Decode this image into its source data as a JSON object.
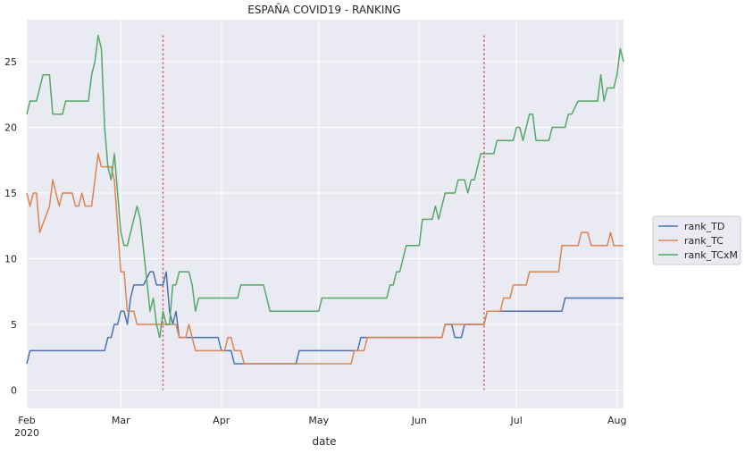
{
  "chart_data": {
    "type": "line",
    "title": "ESPAÑA COVID19 - RANKING",
    "xlabel": "date",
    "ylabel": "",
    "x_start": "2020-02-01",
    "x_end": "2020-08-03",
    "ylim": [
      -1.4,
      28.2
    ],
    "grid": true,
    "legend_position": "right",
    "x_ticks": [
      {
        "date": "2020-02-01",
        "label": "Feb",
        "sublabel": "2020"
      },
      {
        "date": "2020-03-01",
        "label": "Mar",
        "sublabel": ""
      },
      {
        "date": "2020-04-01",
        "label": "Apr",
        "sublabel": ""
      },
      {
        "date": "2020-05-01",
        "label": "May",
        "sublabel": ""
      },
      {
        "date": "2020-06-01",
        "label": "Jun",
        "sublabel": ""
      },
      {
        "date": "2020-07-01",
        "label": "Jul",
        "sublabel": ""
      },
      {
        "date": "2020-08-01",
        "label": "Aug",
        "sublabel": ""
      }
    ],
    "y_ticks": [
      0,
      5,
      10,
      15,
      20,
      25
    ],
    "vlines": [
      {
        "date": "2020-03-14",
        "color": "#c44e52"
      },
      {
        "date": "2020-06-21",
        "color": "#c44e52"
      }
    ],
    "series": [
      {
        "name": "rank_TD",
        "color": "#4c72b0",
        "points": [
          [
            "2020-02-01",
            2
          ],
          [
            "2020-02-02",
            3
          ],
          [
            "2020-02-25",
            3
          ],
          [
            "2020-02-26",
            4
          ],
          [
            "2020-02-27",
            4
          ],
          [
            "2020-02-28",
            5
          ],
          [
            "2020-02-29",
            5
          ],
          [
            "2020-03-01",
            6
          ],
          [
            "2020-03-02",
            6
          ],
          [
            "2020-03-03",
            5
          ],
          [
            "2020-03-04",
            7
          ],
          [
            "2020-03-05",
            8
          ],
          [
            "2020-03-06",
            8
          ],
          [
            "2020-03-07",
            8
          ],
          [
            "2020-03-08",
            8
          ],
          [
            "2020-03-10",
            9
          ],
          [
            "2020-03-11",
            9
          ],
          [
            "2020-03-12",
            8
          ],
          [
            "2020-03-13",
            8
          ],
          [
            "2020-03-14",
            8
          ],
          [
            "2020-03-15",
            9
          ],
          [
            "2020-03-16",
            6
          ],
          [
            "2020-03-17",
            5
          ],
          [
            "2020-03-18",
            6
          ],
          [
            "2020-03-19",
            4
          ],
          [
            "2020-03-31",
            4
          ],
          [
            "2020-04-01",
            3
          ],
          [
            "2020-04-04",
            3
          ],
          [
            "2020-04-05",
            2
          ],
          [
            "2020-04-11",
            2
          ],
          [
            "2020-04-12",
            2
          ],
          [
            "2020-04-24",
            2
          ],
          [
            "2020-04-25",
            3
          ],
          [
            "2020-05-13",
            3
          ],
          [
            "2020-05-14",
            4
          ],
          [
            "2020-06-08",
            4
          ],
          [
            "2020-06-09",
            5
          ],
          [
            "2020-06-11",
            5
          ],
          [
            "2020-06-12",
            4
          ],
          [
            "2020-06-14",
            4
          ],
          [
            "2020-06-15",
            5
          ],
          [
            "2020-06-21",
            5
          ],
          [
            "2020-06-22",
            6
          ],
          [
            "2020-07-15",
            6
          ],
          [
            "2020-07-16",
            7
          ],
          [
            "2020-08-01",
            7
          ],
          [
            "2020-08-03",
            7
          ]
        ]
      },
      {
        "name": "rank_TC",
        "color": "#dd8452",
        "points": [
          [
            "2020-02-01",
            15
          ],
          [
            "2020-02-02",
            14
          ],
          [
            "2020-02-03",
            15
          ],
          [
            "2020-02-04",
            15
          ],
          [
            "2020-02-05",
            12
          ],
          [
            "2020-02-08",
            14
          ],
          [
            "2020-02-09",
            16
          ],
          [
            "2020-02-11",
            14
          ],
          [
            "2020-02-12",
            15
          ],
          [
            "2020-02-15",
            15
          ],
          [
            "2020-02-16",
            14
          ],
          [
            "2020-02-17",
            14
          ],
          [
            "2020-02-18",
            15
          ],
          [
            "2020-02-19",
            14
          ],
          [
            "2020-02-21",
            14
          ],
          [
            "2020-02-23",
            18
          ],
          [
            "2020-02-24",
            17
          ],
          [
            "2020-02-27",
            17
          ],
          [
            "2020-02-28",
            16
          ],
          [
            "2020-03-01",
            9
          ],
          [
            "2020-03-02",
            9
          ],
          [
            "2020-03-03",
            6
          ],
          [
            "2020-03-05",
            6
          ],
          [
            "2020-03-06",
            5
          ],
          [
            "2020-03-18",
            5
          ],
          [
            "2020-03-19",
            4
          ],
          [
            "2020-03-21",
            4
          ],
          [
            "2020-03-22",
            5
          ],
          [
            "2020-03-23",
            4
          ],
          [
            "2020-03-24",
            3
          ],
          [
            "2020-04-02",
            3
          ],
          [
            "2020-04-03",
            4
          ],
          [
            "2020-04-04",
            4
          ],
          [
            "2020-04-05",
            3
          ],
          [
            "2020-04-07",
            3
          ],
          [
            "2020-04-08",
            2
          ],
          [
            "2020-05-11",
            2
          ],
          [
            "2020-05-12",
            3
          ],
          [
            "2020-05-15",
            3
          ],
          [
            "2020-05-16",
            4
          ],
          [
            "2020-06-08",
            4
          ],
          [
            "2020-06-09",
            5
          ],
          [
            "2020-06-21",
            5
          ],
          [
            "2020-06-22",
            6
          ],
          [
            "2020-06-26",
            6
          ],
          [
            "2020-06-27",
            7
          ],
          [
            "2020-06-29",
            7
          ],
          [
            "2020-06-30",
            8
          ],
          [
            "2020-07-04",
            8
          ],
          [
            "2020-07-05",
            9
          ],
          [
            "2020-07-14",
            9
          ],
          [
            "2020-07-15",
            11
          ],
          [
            "2020-07-20",
            11
          ],
          [
            "2020-07-21",
            12
          ],
          [
            "2020-07-23",
            12
          ],
          [
            "2020-07-24",
            11
          ],
          [
            "2020-07-29",
            11
          ],
          [
            "2020-07-30",
            12
          ],
          [
            "2020-07-31",
            11
          ],
          [
            "2020-08-01",
            11
          ],
          [
            "2020-08-03",
            11
          ]
        ]
      },
      {
        "name": "rank_TCxM",
        "color": "#55a868",
        "points": [
          [
            "2020-02-01",
            21
          ],
          [
            "2020-02-02",
            22
          ],
          [
            "2020-02-04",
            22
          ],
          [
            "2020-02-06",
            24
          ],
          [
            "2020-02-08",
            24
          ],
          [
            "2020-02-09",
            21
          ],
          [
            "2020-02-12",
            21
          ],
          [
            "2020-02-13",
            22
          ],
          [
            "2020-02-20",
            22
          ],
          [
            "2020-02-21",
            24
          ],
          [
            "2020-02-22",
            25
          ],
          [
            "2020-02-23",
            27
          ],
          [
            "2020-02-24",
            26
          ],
          [
            "2020-02-25",
            20
          ],
          [
            "2020-02-26",
            17
          ],
          [
            "2020-02-27",
            16
          ],
          [
            "2020-02-28",
            18
          ],
          [
            "2020-03-01",
            12
          ],
          [
            "2020-03-02",
            11
          ],
          [
            "2020-03-03",
            11
          ],
          [
            "2020-03-05",
            13
          ],
          [
            "2020-03-06",
            14
          ],
          [
            "2020-03-07",
            13
          ],
          [
            "2020-03-10",
            6
          ],
          [
            "2020-03-11",
            7
          ],
          [
            "2020-03-12",
            5
          ],
          [
            "2020-03-13",
            4
          ],
          [
            "2020-03-14",
            6
          ],
          [
            "2020-03-15",
            5
          ],
          [
            "2020-03-16",
            5
          ],
          [
            "2020-03-17",
            8
          ],
          [
            "2020-03-18",
            8
          ],
          [
            "2020-03-19",
            9
          ],
          [
            "2020-03-22",
            9
          ],
          [
            "2020-03-23",
            8
          ],
          [
            "2020-03-24",
            6
          ],
          [
            "2020-03-25",
            7
          ],
          [
            "2020-04-06",
            7
          ],
          [
            "2020-04-07",
            8
          ],
          [
            "2020-04-14",
            8
          ],
          [
            "2020-04-16",
            6
          ],
          [
            "2020-04-24",
            6
          ],
          [
            "2020-05-01",
            6
          ],
          [
            "2020-05-02",
            7
          ],
          [
            "2020-05-22",
            7
          ],
          [
            "2020-05-23",
            8
          ],
          [
            "2020-05-24",
            8
          ],
          [
            "2020-05-25",
            9
          ],
          [
            "2020-05-26",
            9
          ],
          [
            "2020-05-28",
            11
          ],
          [
            "2020-06-01",
            11
          ],
          [
            "2020-06-02",
            13
          ],
          [
            "2020-06-05",
            13
          ],
          [
            "2020-06-06",
            14
          ],
          [
            "2020-06-07",
            13
          ],
          [
            "2020-06-09",
            15
          ],
          [
            "2020-06-12",
            15
          ],
          [
            "2020-06-13",
            16
          ],
          [
            "2020-06-15",
            16
          ],
          [
            "2020-06-16",
            15
          ],
          [
            "2020-06-17",
            16
          ],
          [
            "2020-06-18",
            16
          ],
          [
            "2020-06-20",
            18
          ],
          [
            "2020-06-24",
            18
          ],
          [
            "2020-06-25",
            19
          ],
          [
            "2020-06-30",
            19
          ],
          [
            "2020-07-01",
            20
          ],
          [
            "2020-07-02",
            20
          ],
          [
            "2020-07-03",
            19
          ],
          [
            "2020-07-05",
            21
          ],
          [
            "2020-07-06",
            21
          ],
          [
            "2020-07-07",
            19
          ],
          [
            "2020-07-11",
            19
          ],
          [
            "2020-07-12",
            20
          ],
          [
            "2020-07-16",
            20
          ],
          [
            "2020-07-17",
            21
          ],
          [
            "2020-07-18",
            21
          ],
          [
            "2020-07-20",
            22
          ],
          [
            "2020-07-26",
            22
          ],
          [
            "2020-07-27",
            24
          ],
          [
            "2020-07-28",
            22
          ],
          [
            "2020-07-29",
            23
          ],
          [
            "2020-07-31",
            23
          ],
          [
            "2020-08-01",
            24
          ],
          [
            "2020-08-02",
            26
          ],
          [
            "2020-08-03",
            25
          ]
        ]
      }
    ]
  }
}
